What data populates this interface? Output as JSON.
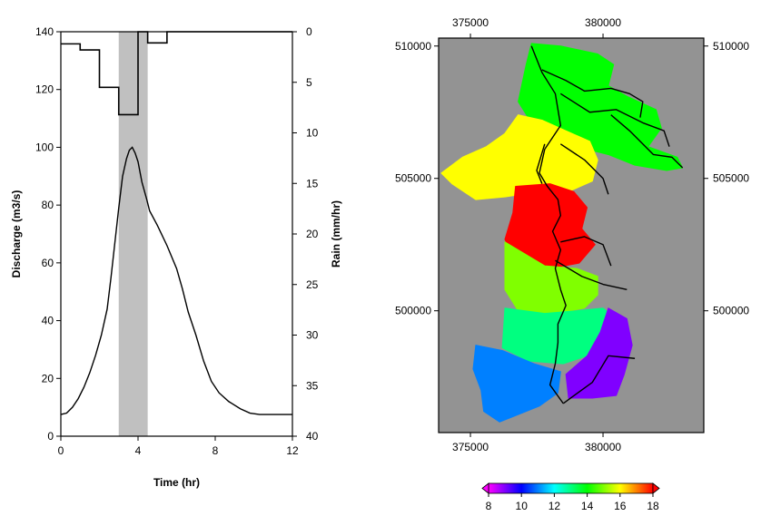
{
  "chart_data": [
    {
      "type": "line",
      "xlabel": "Time (hr)",
      "ylabel": "Discharge (m3/s)",
      "y2label": "Rain (mm/hr)",
      "xlim": [
        0,
        12
      ],
      "ylim": [
        0,
        140
      ],
      "y2lim": [
        0,
        40
      ],
      "y2_reversed": true,
      "xticks": [
        "0",
        "4",
        "8",
        "12"
      ],
      "yticks": [
        "0",
        "20",
        "40",
        "60",
        "80",
        "100",
        "120",
        "140"
      ],
      "y2ticks": [
        "0",
        "5",
        "10",
        "15",
        "20",
        "25",
        "30",
        "35",
        "40"
      ],
      "shaded_interval": {
        "x": [
          3.0,
          4.5
        ],
        "color": "#c0c0c0"
      },
      "hyetograph": {
        "name": "Rain",
        "steps": [
          {
            "x": [
              0,
              1
            ],
            "value": 1.2
          },
          {
            "x": [
              1,
              2
            ],
            "value": 1.8
          },
          {
            "x": [
              2,
              3
            ],
            "value": 5.5
          },
          {
            "x": [
              3,
              4
            ],
            "value": 8.2
          },
          {
            "x": [
              4,
              4.5
            ],
            "value": 0
          },
          {
            "x": [
              4.5,
              5.5
            ],
            "value": 1.1
          },
          {
            "x": [
              5.5,
              12
            ],
            "value": 0
          }
        ]
      },
      "series": [
        {
          "values": [
            [
              0,
              7.5
            ],
            [
              0.3,
              8
            ],
            [
              0.6,
              10
            ],
            [
              0.9,
              13
            ],
            [
              1.2,
              17
            ],
            [
              1.5,
              22
            ],
            [
              1.8,
              28
            ],
            [
              2.1,
              35
            ],
            [
              2.4,
              44
            ],
            [
              2.6,
              55
            ],
            [
              2.8,
              67
            ],
            [
              3.0,
              79
            ],
            [
              3.2,
              90
            ],
            [
              3.4,
              96
            ],
            [
              3.55,
              99
            ],
            [
              3.7,
              100
            ],
            [
              3.85,
              98
            ],
            [
              4.0,
              95
            ],
            [
              4.2,
              88
            ],
            [
              4.45,
              82
            ],
            [
              4.6,
              78
            ],
            [
              5.0,
              73
            ],
            [
              5.5,
              66
            ],
            [
              6.0,
              58
            ],
            [
              6.3,
              51
            ],
            [
              6.6,
              43
            ],
            [
              7.0,
              35
            ],
            [
              7.4,
              26
            ],
            [
              7.8,
              19
            ],
            [
              8.2,
              15
            ],
            [
              8.7,
              12
            ],
            [
              9.3,
              9.5
            ],
            [
              9.8,
              8
            ],
            [
              10.3,
              7.5
            ],
            [
              12,
              7.5
            ]
          ]
        }
      ]
    },
    {
      "type": "heatmap",
      "xticks": [
        "375000",
        "380000"
      ],
      "yticks": [
        "510000",
        "505000",
        "500000"
      ],
      "xlim": [
        373800,
        383800
      ],
      "ylim": [
        495400,
        510300
      ],
      "background_color": "#939393",
      "colorbar": {
        "min": 8,
        "max": 18,
        "ticks": [
          "8",
          "10",
          "12",
          "14",
          "16",
          "18"
        ],
        "colors": [
          "#ff00ff",
          "#8000ff",
          "#0000ff",
          "#0080ff",
          "#00ffff",
          "#00ff80",
          "#00ff00",
          "#80ff00",
          "#ffff00",
          "#ff8000",
          "#ff0000"
        ]
      },
      "regions": [
        {
          "value": 13.5,
          "outline": [
            [
              377300,
              510100
            ],
            [
              378400,
              510000
            ],
            [
              379800,
              509700
            ],
            [
              380400,
              509300
            ],
            [
              380200,
              508500
            ],
            [
              380900,
              508100
            ],
            [
              382000,
              507600
            ],
            [
              382200,
              506900
            ],
            [
              381700,
              506200
            ],
            [
              382800,
              505800
            ],
            [
              383000,
              505400
            ],
            [
              382400,
              505300
            ],
            [
              381200,
              505500
            ],
            [
              380200,
              505900
            ],
            [
              379000,
              506200
            ],
            [
              378300,
              506600
            ],
            [
              377300,
              507100
            ],
            [
              376800,
              507900
            ],
            [
              377100,
              509300
            ]
          ]
        },
        {
          "value": 15.5,
          "outline": [
            [
              376800,
              507400
            ],
            [
              377700,
              507200
            ],
            [
              378600,
              506800
            ],
            [
              379500,
              506400
            ],
            [
              379800,
              505700
            ],
            [
              379600,
              504900
            ],
            [
              378700,
              504500
            ],
            [
              377600,
              504500
            ],
            [
              376300,
              504300
            ],
            [
              375200,
              504200
            ],
            [
              374300,
              504800
            ],
            [
              373900,
              505200
            ],
            [
              374700,
              505800
            ],
            [
              375600,
              506200
            ],
            [
              376300,
              506700
            ]
          ]
        },
        {
          "value": 17.5,
          "outline": [
            [
              376700,
              504700
            ],
            [
              378000,
              504800
            ],
            [
              378900,
              504500
            ],
            [
              379400,
              503900
            ],
            [
              379200,
              503100
            ],
            [
              379700,
              502500
            ],
            [
              379100,
              501800
            ],
            [
              378000,
              501600
            ],
            [
              376700,
              501800
            ],
            [
              376300,
              502700
            ],
            [
              376600,
              503700
            ]
          ]
        },
        {
          "value": 15.0,
          "outline": [
            [
              376300,
              502600
            ],
            [
              377800,
              501700
            ],
            [
              379000,
              501600
            ],
            [
              379800,
              501300
            ],
            [
              379800,
              500600
            ],
            [
              379300,
              500100
            ],
            [
              378200,
              499900
            ],
            [
              376800,
              500000
            ],
            [
              376300,
              500800
            ]
          ]
        },
        {
          "value": 13.0,
          "outline": [
            [
              376300,
              500100
            ],
            [
              377800,
              499900
            ],
            [
              379000,
              500000
            ],
            [
              380000,
              500100
            ],
            [
              380600,
              499600
            ],
            [
              380200,
              499100
            ],
            [
              379700,
              498400
            ],
            [
              378500,
              498000
            ],
            [
              377200,
              498100
            ],
            [
              376200,
              498600
            ]
          ]
        },
        {
          "value": 11.0,
          "outline": [
            [
              375200,
              498700
            ],
            [
              376200,
              498500
            ],
            [
              377400,
              498000
            ],
            [
              378400,
              497700
            ],
            [
              378300,
              496900
            ],
            [
              377600,
              496400
            ],
            [
              376600,
              496000
            ],
            [
              376100,
              495800
            ],
            [
              375500,
              496200
            ],
            [
              375400,
              497000
            ],
            [
              375100,
              497800
            ]
          ]
        },
        {
          "value": 8.5,
          "outline": [
            [
              380200,
              500100
            ],
            [
              380900,
              499700
            ],
            [
              381100,
              498700
            ],
            [
              380800,
              497600
            ],
            [
              380500,
              496800
            ],
            [
              379600,
              496700
            ],
            [
              378700,
              496700
            ],
            [
              378600,
              497600
            ],
            [
              379400,
              498300
            ],
            [
              379900,
              499200
            ]
          ]
        }
      ],
      "streams": [
        [
          [
            377300,
            510000
          ],
          [
            377700,
            509000
          ],
          [
            378200,
            508200
          ],
          [
            378400,
            507000
          ],
          [
            377800,
            506100
          ],
          [
            377600,
            505200
          ],
          [
            377900,
            504700
          ],
          [
            378300,
            504200
          ],
          [
            378400,
            503600
          ],
          [
            378100,
            503000
          ],
          [
            378400,
            502300
          ],
          [
            378200,
            501600
          ],
          [
            378400,
            500800
          ],
          [
            378600,
            500200
          ],
          [
            378300,
            499500
          ],
          [
            378300,
            498800
          ],
          [
            378200,
            498000
          ],
          [
            378000,
            497200
          ],
          [
            378500,
            496500
          ]
        ],
        [
          [
            377700,
            509100
          ],
          [
            378600,
            508700
          ],
          [
            379300,
            508300
          ],
          [
            380300,
            508400
          ],
          [
            381000,
            508200
          ],
          [
            381500,
            507900
          ],
          [
            381400,
            507300
          ]
        ],
        [
          [
            378400,
            508200
          ],
          [
            379500,
            507500
          ],
          [
            380500,
            507600
          ],
          [
            381500,
            507100
          ],
          [
            382300,
            506800
          ],
          [
            382500,
            506200
          ]
        ],
        [
          [
            380300,
            507400
          ],
          [
            381000,
            506800
          ],
          [
            381900,
            505900
          ],
          [
            382600,
            505800
          ],
          [
            383000,
            505400
          ]
        ],
        [
          [
            378400,
            506300
          ],
          [
            379300,
            505700
          ],
          [
            380000,
            505000
          ],
          [
            380200,
            504400
          ]
        ],
        [
          [
            377800,
            506300
          ],
          [
            377500,
            505300
          ],
          [
            377700,
            504800
          ]
        ],
        [
          [
            378400,
            502600
          ],
          [
            379300,
            502800
          ],
          [
            380000,
            502500
          ],
          [
            380300,
            501700
          ]
        ],
        [
          [
            378200,
            501900
          ],
          [
            379200,
            501300
          ],
          [
            380000,
            501000
          ],
          [
            380900,
            500800
          ]
        ],
        [
          [
            378500,
            496500
          ],
          [
            379600,
            497300
          ],
          [
            380200,
            498300
          ],
          [
            381200,
            498200
          ]
        ]
      ]
    }
  ]
}
